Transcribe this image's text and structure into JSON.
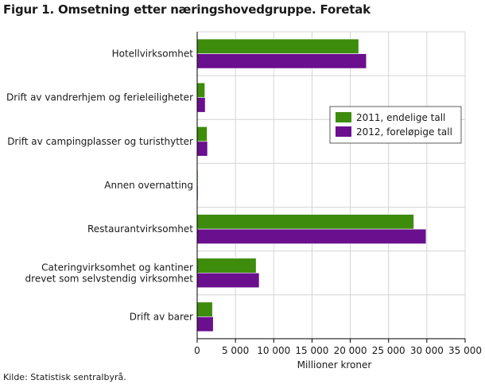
{
  "chart_data": {
    "type": "bar",
    "orientation": "horizontal",
    "title": "Figur 1. Omsetning etter næringshovedgruppe. Foretak",
    "source": "Kilde: Statistisk sentralbyrå.",
    "xlabel": "Millioner kroner",
    "xlim": [
      0,
      35000
    ],
    "xticks": [
      0,
      5000,
      10000,
      15000,
      20000,
      25000,
      30000,
      35000
    ],
    "xtick_labels": [
      "0",
      "5 000",
      "10 000",
      "15 000",
      "20 000",
      "25 000",
      "30 000",
      "35 000"
    ],
    "grid": true,
    "legend_position": "right",
    "categories": [
      [
        "Hotellvirksomhet"
      ],
      [
        "Drift av vandrerhjem og ferieleiligheter"
      ],
      [
        "Drift av campingplasser og turisthytter"
      ],
      [
        "Annen overnatting"
      ],
      [
        "Restaurantvirksomhet"
      ],
      [
        "Cateringvirksomhet og kantiner",
        "drevet som selvstendig virksomhet"
      ],
      [
        "Drift av barer"
      ]
    ],
    "series": [
      {
        "name": "2011, endelige tall",
        "color": "#3e8c0c",
        "values": [
          21100,
          1000,
          1300,
          100,
          28300,
          7700,
          2000
        ]
      },
      {
        "name": "2012, foreløpige tall",
        "color": "#6a0f8e",
        "values": [
          22100,
          1050,
          1350,
          110,
          29900,
          8100,
          2100
        ]
      }
    ]
  }
}
